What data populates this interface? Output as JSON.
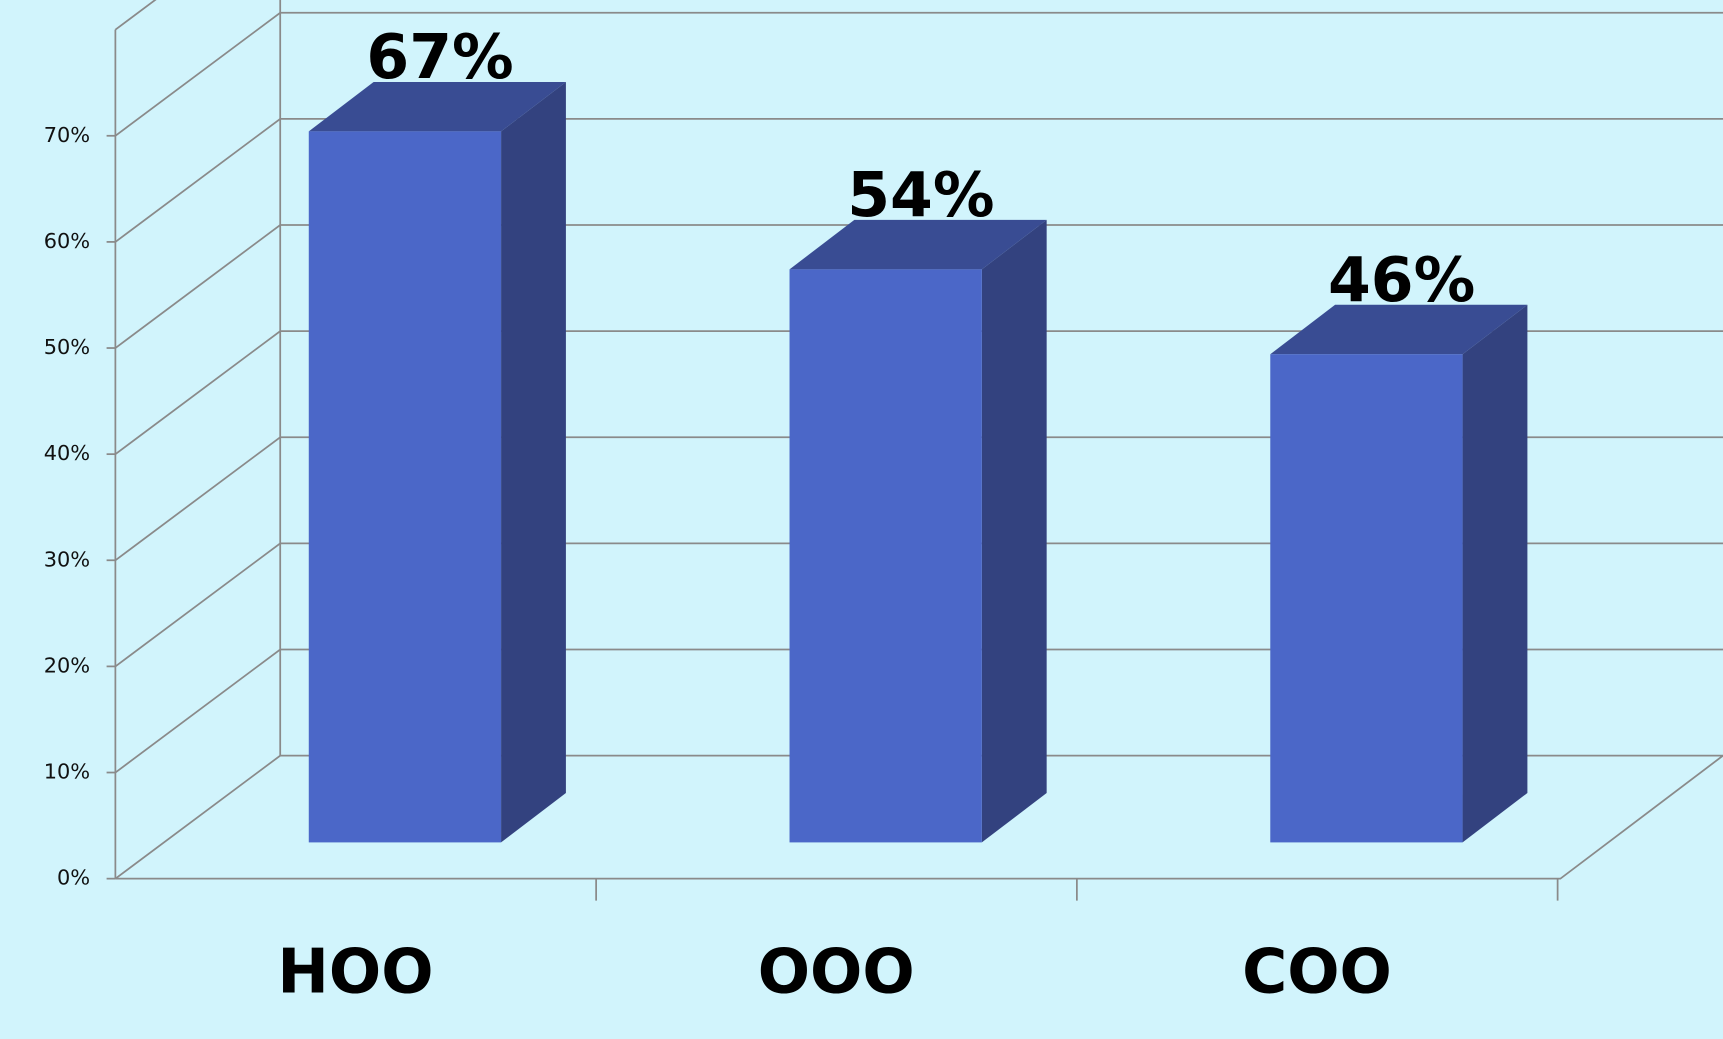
{
  "chart_data": {
    "type": "bar3d",
    "categories": [
      "HOO",
      "OOO",
      "COO"
    ],
    "values": [
      67,
      54,
      46
    ],
    "value_labels": [
      "67%",
      "54%",
      "46%"
    ],
    "color": "#4b67c8",
    "ylim": [
      0,
      80
    ],
    "yticks": [
      {
        "value": 0,
        "label": "0%"
      },
      {
        "value": 10,
        "label": "10%"
      },
      {
        "value": 20,
        "label": "20%"
      },
      {
        "value": 30,
        "label": "30%"
      },
      {
        "value": 40,
        "label": "40%"
      },
      {
        "value": 50,
        "label": "50%"
      },
      {
        "value": 60,
        "label": "60%"
      },
      {
        "value": 70,
        "label": "70%"
      }
    ],
    "grid": true
  }
}
